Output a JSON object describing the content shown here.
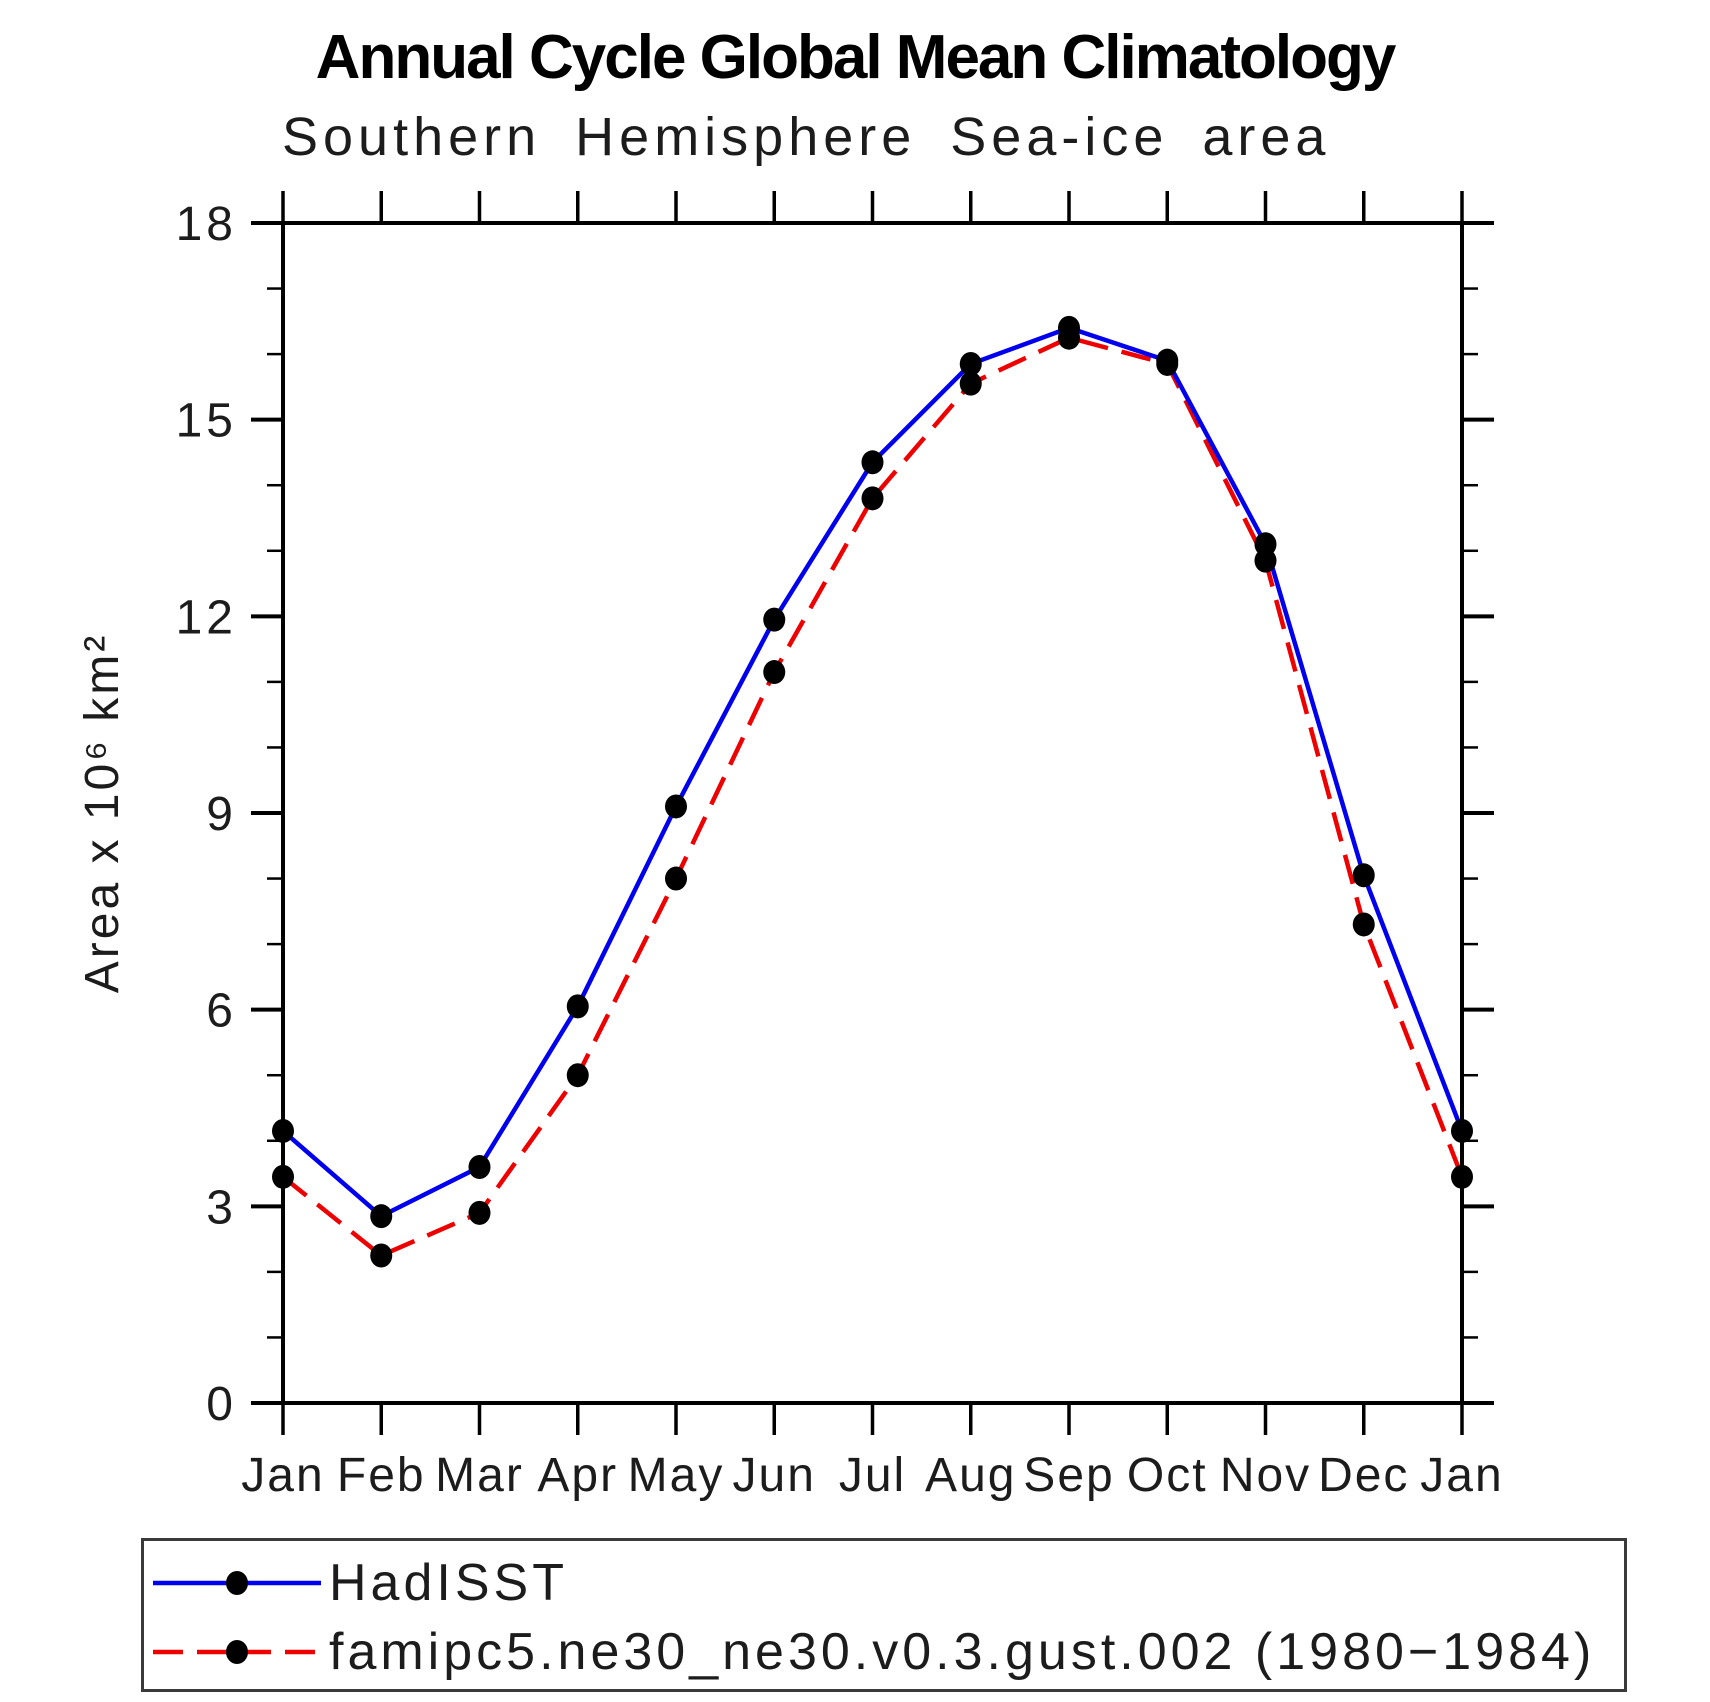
{
  "title": "Annual Cycle Global Mean Climatology",
  "subtitle": "Southern Hemisphere Sea-ice area",
  "chart_data": {
    "type": "line",
    "x_categories": [
      "Jan",
      "Feb",
      "Mar",
      "Apr",
      "May",
      "Jun",
      "Jul",
      "Aug",
      "Sep",
      "Oct",
      "Nov",
      "Dec",
      "Jan"
    ],
    "xlabel": "",
    "ylabel": "Area x 10⁶ km²",
    "ylim": [
      0,
      18
    ],
    "ytick_major": [
      0,
      3,
      6,
      9,
      12,
      15,
      18
    ],
    "ytick_minor_step": 1,
    "grid": false,
    "legend_position": "bottom-box",
    "axis_color": "#000000",
    "marker_color": "#000000",
    "series": [
      {
        "name": "HadISST",
        "color": "#0000ee",
        "line_style": "solid",
        "marker": "filled-circle",
        "values": [
          4.15,
          2.85,
          3.6,
          6.05,
          9.1,
          11.95,
          14.35,
          15.85,
          16.4,
          15.9,
          13.1,
          8.05,
          4.15
        ]
      },
      {
        "name": "famipc5.ne30_ne30.v0.3.gust.002 (1980−1984)",
        "color": "#ee0000",
        "line_style": "dashed",
        "marker": "filled-circle",
        "values": [
          3.45,
          2.25,
          2.9,
          5.0,
          8.0,
          11.15,
          13.8,
          15.55,
          16.25,
          15.85,
          12.85,
          7.3,
          3.45
        ]
      }
    ]
  }
}
